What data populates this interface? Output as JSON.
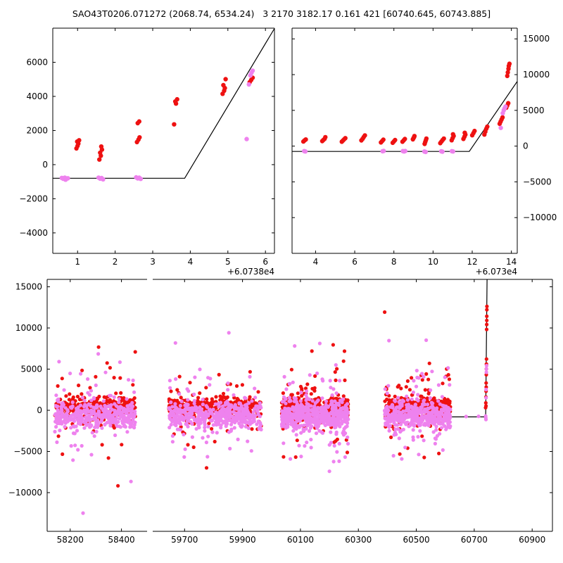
{
  "title": "SAO43T0206.071272 (2068.74, 6534.24)   3 2170 3182.17 0.161 421 [60740.645, 60743.885]",
  "colors": {
    "red": "#ee1111",
    "violet": "#ee82ee",
    "line": "#000000",
    "background": "#ffffff"
  },
  "chart_data": [
    {
      "id": "zoom-recent",
      "type": "scatter",
      "title": "",
      "xlim": [
        0.34,
        6.24
      ],
      "ylim": [
        -5200,
        8000
      ],
      "xticks": [
        1,
        2,
        3,
        4,
        5,
        6
      ],
      "yticks": [
        -4000,
        -2000,
        0,
        2000,
        4000,
        6000
      ],
      "y_label_side": "left",
      "x_offset_label": "+6.0738e4",
      "grid": false,
      "model_line": [
        [
          0.34,
          -800
        ],
        [
          3.85,
          -800
        ],
        [
          6.24,
          7980
        ]
      ],
      "series": [
        {
          "name": "band-red",
          "color": "red",
          "points": [
            [
              0.97,
              950
            ],
            [
              1.0,
              1100
            ],
            [
              1.02,
              1230
            ],
            [
              0.99,
              1350
            ],
            [
              1.04,
              1430
            ],
            [
              1.58,
              300
            ],
            [
              1.62,
              520
            ],
            [
              1.6,
              700
            ],
            [
              1.65,
              880
            ],
            [
              1.63,
              1060
            ],
            [
              2.58,
              1320
            ],
            [
              2.62,
              1460
            ],
            [
              2.65,
              1600
            ],
            [
              2.6,
              2430
            ],
            [
              2.64,
              2530
            ],
            [
              3.57,
              2360
            ],
            [
              3.62,
              3580
            ],
            [
              3.6,
              3700
            ],
            [
              3.65,
              3830
            ],
            [
              4.86,
              4150
            ],
            [
              4.9,
              4330
            ],
            [
              4.92,
              4490
            ],
            [
              4.88,
              4660
            ],
            [
              4.94,
              5010
            ],
            [
              5.58,
              4830
            ],
            [
              5.62,
              4960
            ],
            [
              5.66,
              5090
            ]
          ]
        },
        {
          "name": "band-violet",
          "color": "violet",
          "points": [
            [
              0.58,
              -780
            ],
            [
              0.62,
              -830
            ],
            [
              0.66,
              -760
            ],
            [
              0.7,
              -845
            ],
            [
              0.74,
              -800
            ],
            [
              0.68,
              -880
            ],
            [
              1.56,
              -760
            ],
            [
              1.6,
              -825
            ],
            [
              1.64,
              -785
            ],
            [
              1.68,
              -860
            ],
            [
              2.56,
              -745
            ],
            [
              2.6,
              -805
            ],
            [
              2.64,
              -765
            ],
            [
              2.68,
              -835
            ],
            [
              5.5,
              1500
            ],
            [
              5.56,
              4700
            ],
            [
              5.6,
              5230
            ],
            [
              5.63,
              5390
            ],
            [
              5.66,
              5510
            ]
          ]
        }
      ]
    },
    {
      "id": "zoom-wide",
      "type": "scatter",
      "title": "",
      "xlim": [
        2.8,
        14.3
      ],
      "ylim": [
        -15000,
        16500
      ],
      "xticks": [
        4,
        6,
        8,
        10,
        12,
        14
      ],
      "yticks": [
        -10000,
        -5000,
        0,
        5000,
        10000,
        15000
      ],
      "y_label_side": "right",
      "x_offset_label": "+6.073e4",
      "grid": false,
      "model_line": [
        [
          2.8,
          -750
        ],
        [
          11.85,
          -750
        ],
        [
          14.3,
          9050
        ]
      ],
      "series": [
        {
          "name": "band-red",
          "color": "red",
          "points": [
            [
              3.38,
              640
            ],
            [
              3.44,
              800
            ],
            [
              3.5,
              930
            ],
            [
              4.34,
              700
            ],
            [
              4.4,
              860
            ],
            [
              4.46,
              1010
            ],
            [
              4.5,
              1250
            ],
            [
              5.34,
              610
            ],
            [
              5.4,
              780
            ],
            [
              5.46,
              950
            ],
            [
              5.52,
              1110
            ],
            [
              6.34,
              800
            ],
            [
              6.4,
              1010
            ],
            [
              6.46,
              1260
            ],
            [
              6.52,
              1500
            ],
            [
              7.34,
              510
            ],
            [
              7.4,
              700
            ],
            [
              7.46,
              900
            ],
            [
              7.94,
              460
            ],
            [
              8.0,
              650
            ],
            [
              8.06,
              850
            ],
            [
              8.44,
              610
            ],
            [
              8.5,
              800
            ],
            [
              8.56,
              1000
            ],
            [
              8.97,
              950
            ],
            [
              9.0,
              1100
            ],
            [
              9.03,
              1240
            ],
            [
              9.05,
              1410
            ],
            [
              9.57,
              310
            ],
            [
              9.6,
              560
            ],
            [
              9.63,
              810
            ],
            [
              9.66,
              1060
            ],
            [
              10.37,
              420
            ],
            [
              10.43,
              640
            ],
            [
              10.49,
              860
            ],
            [
              10.55,
              1060
            ],
            [
              10.95,
              820
            ],
            [
              11.0,
              1120
            ],
            [
              11.05,
              1420
            ],
            [
              11.02,
              1660
            ],
            [
              11.55,
              1010
            ],
            [
              11.6,
              1310
            ],
            [
              11.65,
              1610
            ],
            [
              11.62,
              1860
            ],
            [
              12.0,
              1520
            ],
            [
              12.06,
              1820
            ],
            [
              12.12,
              2120
            ],
            [
              12.62,
              1620
            ],
            [
              12.67,
              2020
            ],
            [
              12.72,
              2420
            ],
            [
              12.77,
              2720
            ],
            [
              13.4,
              3120
            ],
            [
              13.45,
              3420
            ],
            [
              13.5,
              3720
            ],
            [
              13.55,
              4020
            ],
            [
              13.74,
              5380
            ],
            [
              13.79,
              5680
            ],
            [
              13.84,
              6010
            ],
            [
              13.79,
              9820
            ],
            [
              13.82,
              10310
            ],
            [
              13.85,
              10810
            ],
            [
              13.87,
              11210
            ],
            [
              13.9,
              11520
            ]
          ]
        },
        {
          "name": "band-violet",
          "color": "violet",
          "points": [
            [
              3.42,
              -700
            ],
            [
              3.48,
              -750
            ],
            [
              7.42,
              -720
            ],
            [
              7.48,
              -680
            ],
            [
              8.46,
              -700
            ],
            [
              8.52,
              -745
            ],
            [
              8.58,
              -690
            ],
            [
              9.56,
              -760
            ],
            [
              9.62,
              -815
            ],
            [
              10.42,
              -730
            ],
            [
              10.48,
              -775
            ],
            [
              10.96,
              -705
            ],
            [
              11.02,
              -745
            ],
            [
              13.46,
              2550
            ],
            [
              13.56,
              4600
            ],
            [
              13.61,
              5010
            ],
            [
              13.65,
              5260
            ],
            [
              13.7,
              5520
            ]
          ]
        }
      ]
    },
    {
      "id": "full-timeseries",
      "type": "scatter",
      "title": "",
      "broken_x_axis": true,
      "panels": [
        {
          "xlim": [
            58110,
            58500
          ],
          "xticks": [
            58200,
            58400
          ]
        },
        {
          "xlim": [
            59590,
            60970
          ],
          "xticks": [
            59700,
            59900,
            60100,
            60300,
            60500,
            60700,
            60900
          ]
        }
      ],
      "ylim": [
        -14700,
        15900
      ],
      "yticks": [
        -10000,
        -5000,
        0,
        5000,
        10000,
        15000
      ],
      "y_label_side": "left",
      "grid": false,
      "model_line": [
        [
          60528,
          -800
        ],
        [
          60739.5,
          -800
        ],
        [
          60744.2,
          15900
        ]
      ],
      "clusters": [
        {
          "x": [
            58140,
            58455
          ],
          "red": 330,
          "violet": 390
        },
        {
          "x": [
            59645,
            59965
          ],
          "red": 390,
          "violet": 440
        },
        {
          "x": [
            60035,
            60265
          ],
          "red": 470,
          "violet": 540
        },
        {
          "x": [
            60390,
            60618
          ],
          "red": 390,
          "violet": 440
        }
      ],
      "band": {
        "tail_frac": 0.15,
        "tail_sigma": 2300,
        "far_frac": 0.05,
        "far_sigma": 5000,
        "red": {
          "center": 400,
          "sigma": 550
        },
        "violet": {
          "center": -650,
          "sigma": 800
        }
      },
      "series": [
        {
          "name": "transit-red",
          "color": "red",
          "points": [
            [
              60739.2,
              320
            ],
            [
              60739.8,
              900
            ],
            [
              60740.3,
              1620
            ],
            [
              60740.6,
              520
            ],
            [
              60740.9,
              2320
            ],
            [
              60741.1,
              3320
            ],
            [
              60741.3,
              2820
            ],
            [
              60741.5,
              4320
            ],
            [
              60741.9,
              5020
            ],
            [
              60742.1,
              5620
            ],
            [
              60742.4,
              6220
            ],
            [
              60742.9,
              9820
            ],
            [
              60743.0,
              10420
            ],
            [
              60743.2,
              10920
            ],
            [
              60743.4,
              11420
            ],
            [
              60743.6,
              12220
            ],
            [
              60743.8,
              12620
            ]
          ]
        },
        {
          "name": "transit-violet",
          "color": "violet",
          "points": [
            [
              60739.5,
              -700
            ],
            [
              60740.0,
              -920
            ],
            [
              60740.5,
              -1120
            ],
            [
              60740.8,
              1520
            ],
            [
              60741.0,
              2520
            ],
            [
              60741.9,
              4620
            ],
            [
              60742.2,
              5020
            ],
            [
              60742.5,
              5420
            ],
            [
              60672,
              -760
            ],
            [
              60715,
              -730
            ]
          ]
        }
      ]
    }
  ]
}
